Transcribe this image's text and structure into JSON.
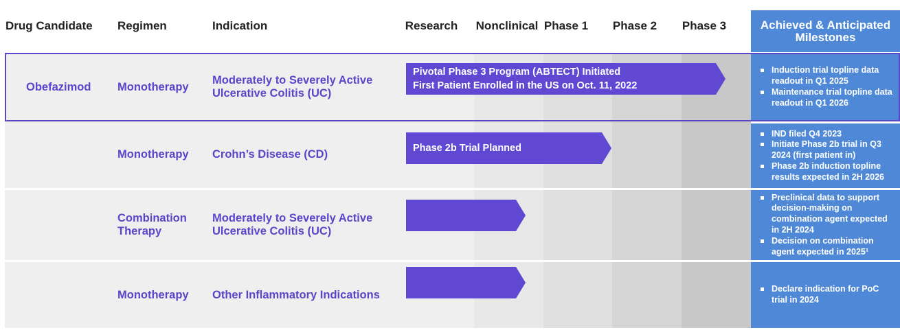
{
  "header": {
    "drug_candidate": "Drug Candidate",
    "regimen": "Regimen",
    "indication": "Indication",
    "stages": [
      "Research",
      "Nonclinical",
      "Phase 1",
      "Phase 2",
      "Phase 3"
    ],
    "milestones": "Achieved & Anticipated Milestones"
  },
  "drug": {
    "name": "Obefazimod"
  },
  "rows": [
    {
      "regimen": "Monotherapy",
      "indication": "Moderately to Severely Active Ulcerative Colitis (UC)",
      "bar_lines": [
        "Pivotal Phase 3 Program (ABTECT) Initiated",
        "First Patient Enrolled in the US on Oct. 11, 2022"
      ],
      "stage_reached": "Phase 3",
      "milestones": [
        "Induction trial topline data readout in Q1 2025",
        "Maintenance trial topline data readout in Q1 2026"
      ]
    },
    {
      "regimen": "Monotherapy",
      "indication": "Crohn’s Disease (CD)",
      "bar_lines": [
        "Phase 2b Trial Planned"
      ],
      "stage_reached": "Phase 2",
      "milestones": [
        "IND filed Q4 2023",
        "Initiate Phase 2b trial in Q3 2024 (first patient in)",
        "Phase 2b induction topline results expected in 2H 2026"
      ]
    },
    {
      "regimen": "Combination Therapy",
      "indication": "Moderately to Severely Active Ulcerative Colitis (UC)",
      "bar_lines": [],
      "stage_reached": "Nonclinical",
      "milestones": [
        "Preclinical data to support decision-making on combination agent expected in 2H 2024",
        "Decision on combination agent expected in 2025¹"
      ]
    },
    {
      "regimen": "Monotherapy",
      "indication": "Other Inflammatory Indications",
      "bar_lines": [],
      "stage_reached": "Nonclinical",
      "milestones": [
        "Declare indication for PoC trial in 2024"
      ]
    }
  ],
  "colors": {
    "accent_purple": "#5b45c9",
    "bar_purple": "#6048d2",
    "milestone_blue": "#4e88d6",
    "row_gray": "#efefef"
  }
}
